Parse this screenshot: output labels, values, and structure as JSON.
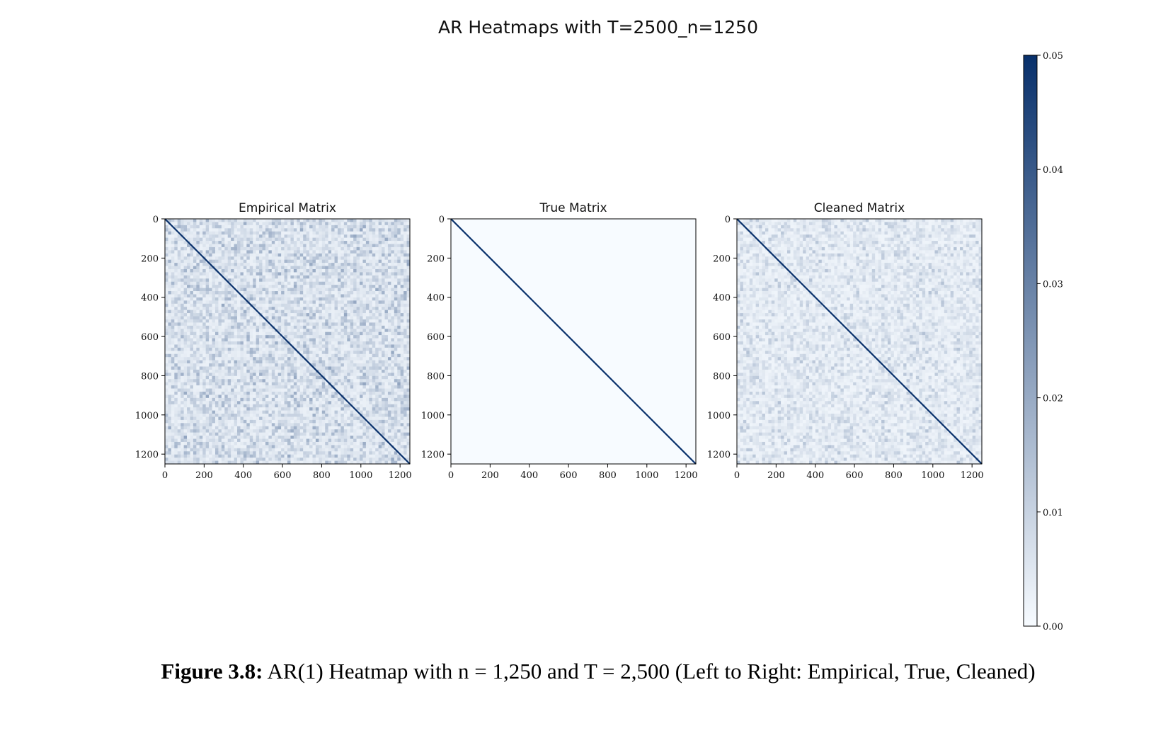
{
  "figure": {
    "title": "AR Heatmaps with T=2500_n=1250",
    "caption_lead": "Figure 3.8:",
    "caption_text": "AR(1) Heatmap with n = 1,250 and T = 2,500 (Left to Right: Empirical, True, Cleaned)"
  },
  "chart_data": {
    "type": "heatmap",
    "matrix_size": 1250,
    "colormap": "Blues",
    "colors": {
      "low": "#f7fbff",
      "high": "#08306b"
    },
    "x_ticks": [
      0,
      200,
      400,
      600,
      800,
      1000,
      1200
    ],
    "y_ticks": [
      0,
      200,
      400,
      600,
      800,
      1000,
      1200
    ],
    "panels": [
      {
        "title": "Empirical Matrix",
        "diagonal_value": 0.05,
        "off_diagonal_level": 0.012,
        "noise": true
      },
      {
        "title": "True Matrix",
        "diagonal_value": 0.05,
        "off_diagonal_level": 0.0,
        "noise": false
      },
      {
        "title": "Cleaned Matrix",
        "diagonal_value": 0.05,
        "off_diagonal_level": 0.008,
        "noise": true
      }
    ],
    "colorbar": {
      "range": [
        0.0,
        0.05
      ],
      "ticks": [
        0.0,
        0.01,
        0.02,
        0.03,
        0.04,
        0.05
      ],
      "tick_labels": [
        "0.00",
        "0.01",
        "0.02",
        "0.03",
        "0.04",
        "0.05"
      ]
    }
  }
}
